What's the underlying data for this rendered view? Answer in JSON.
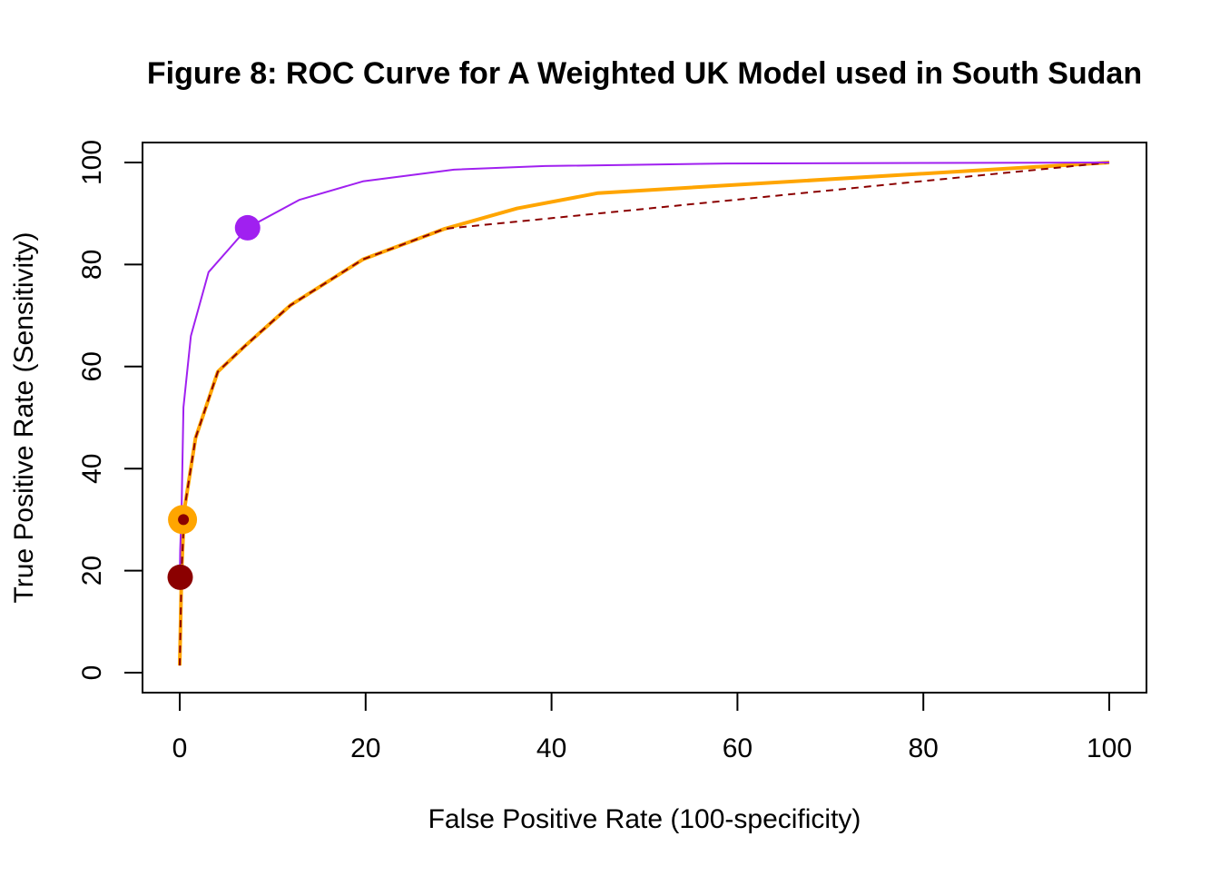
{
  "chart_data": {
    "type": "line",
    "title": "Figure 8: ROC Curve for A Weighted UK Model used in South Sudan",
    "xlabel": "False Positive Rate (100-specificity)",
    "ylabel": "True Positive Rate (Sensitivity)",
    "xlim": [
      -4,
      104
    ],
    "ylim": [
      -4,
      104
    ],
    "xticks": [
      0,
      20,
      40,
      60,
      80,
      100
    ],
    "yticks": [
      0,
      20,
      40,
      60,
      80,
      100
    ],
    "xtick_labels": [
      "0",
      "20",
      "40",
      "60",
      "80",
      "100"
    ],
    "ytick_labels": [
      "0",
      "20",
      "40",
      "60",
      "80",
      "100"
    ],
    "grid": false,
    "series": [
      {
        "name": "purple-curve",
        "color": "#A020F0",
        "style": "solid",
        "width": 2,
        "x": [
          0,
          0.05,
          0.2,
          0.4,
          1.2,
          3.1,
          7.3,
          12.9,
          19.7,
          29.5,
          39.3,
          58.8,
          100
        ],
        "y": [
          18,
          24,
          32,
          52,
          66,
          78.5,
          87.2,
          92.7,
          96.3,
          98.6,
          99.3,
          99.8,
          100
        ]
      },
      {
        "name": "orange-curve",
        "color": "#FFA500",
        "style": "solid",
        "width": 4,
        "x": [
          0,
          0.2,
          0.5,
          1.7,
          4.1,
          7,
          11.9,
          19.7,
          28.5,
          36.3,
          45,
          100
        ],
        "y": [
          1.4,
          20,
          32,
          46,
          59,
          64,
          72,
          81,
          87,
          91,
          94,
          100
        ]
      },
      {
        "name": "darkred-dashed-curve",
        "color": "#8B0000",
        "style": "dashed",
        "width": 2,
        "x": [
          0,
          0.2,
          0.5,
          1.7,
          4.1,
          7,
          11.9,
          19.7,
          28.5,
          100
        ],
        "y": [
          1.4,
          20,
          32,
          46,
          59,
          64,
          72,
          81,
          87,
          100
        ]
      }
    ],
    "points": [
      {
        "name": "purple-point",
        "x": 7.3,
        "y": 87.2,
        "color": "#A020F0",
        "size": 14
      },
      {
        "name": "orange-point",
        "x": 0.3,
        "y": 30,
        "color": "#FFA500",
        "size": 16
      },
      {
        "name": "darkred-small-point",
        "x": 0.4,
        "y": 30,
        "color": "#8B0000",
        "size": 6
      },
      {
        "name": "darkred-large-point",
        "x": 0.05,
        "y": 18.7,
        "color": "#8B0000",
        "size": 14
      }
    ]
  }
}
